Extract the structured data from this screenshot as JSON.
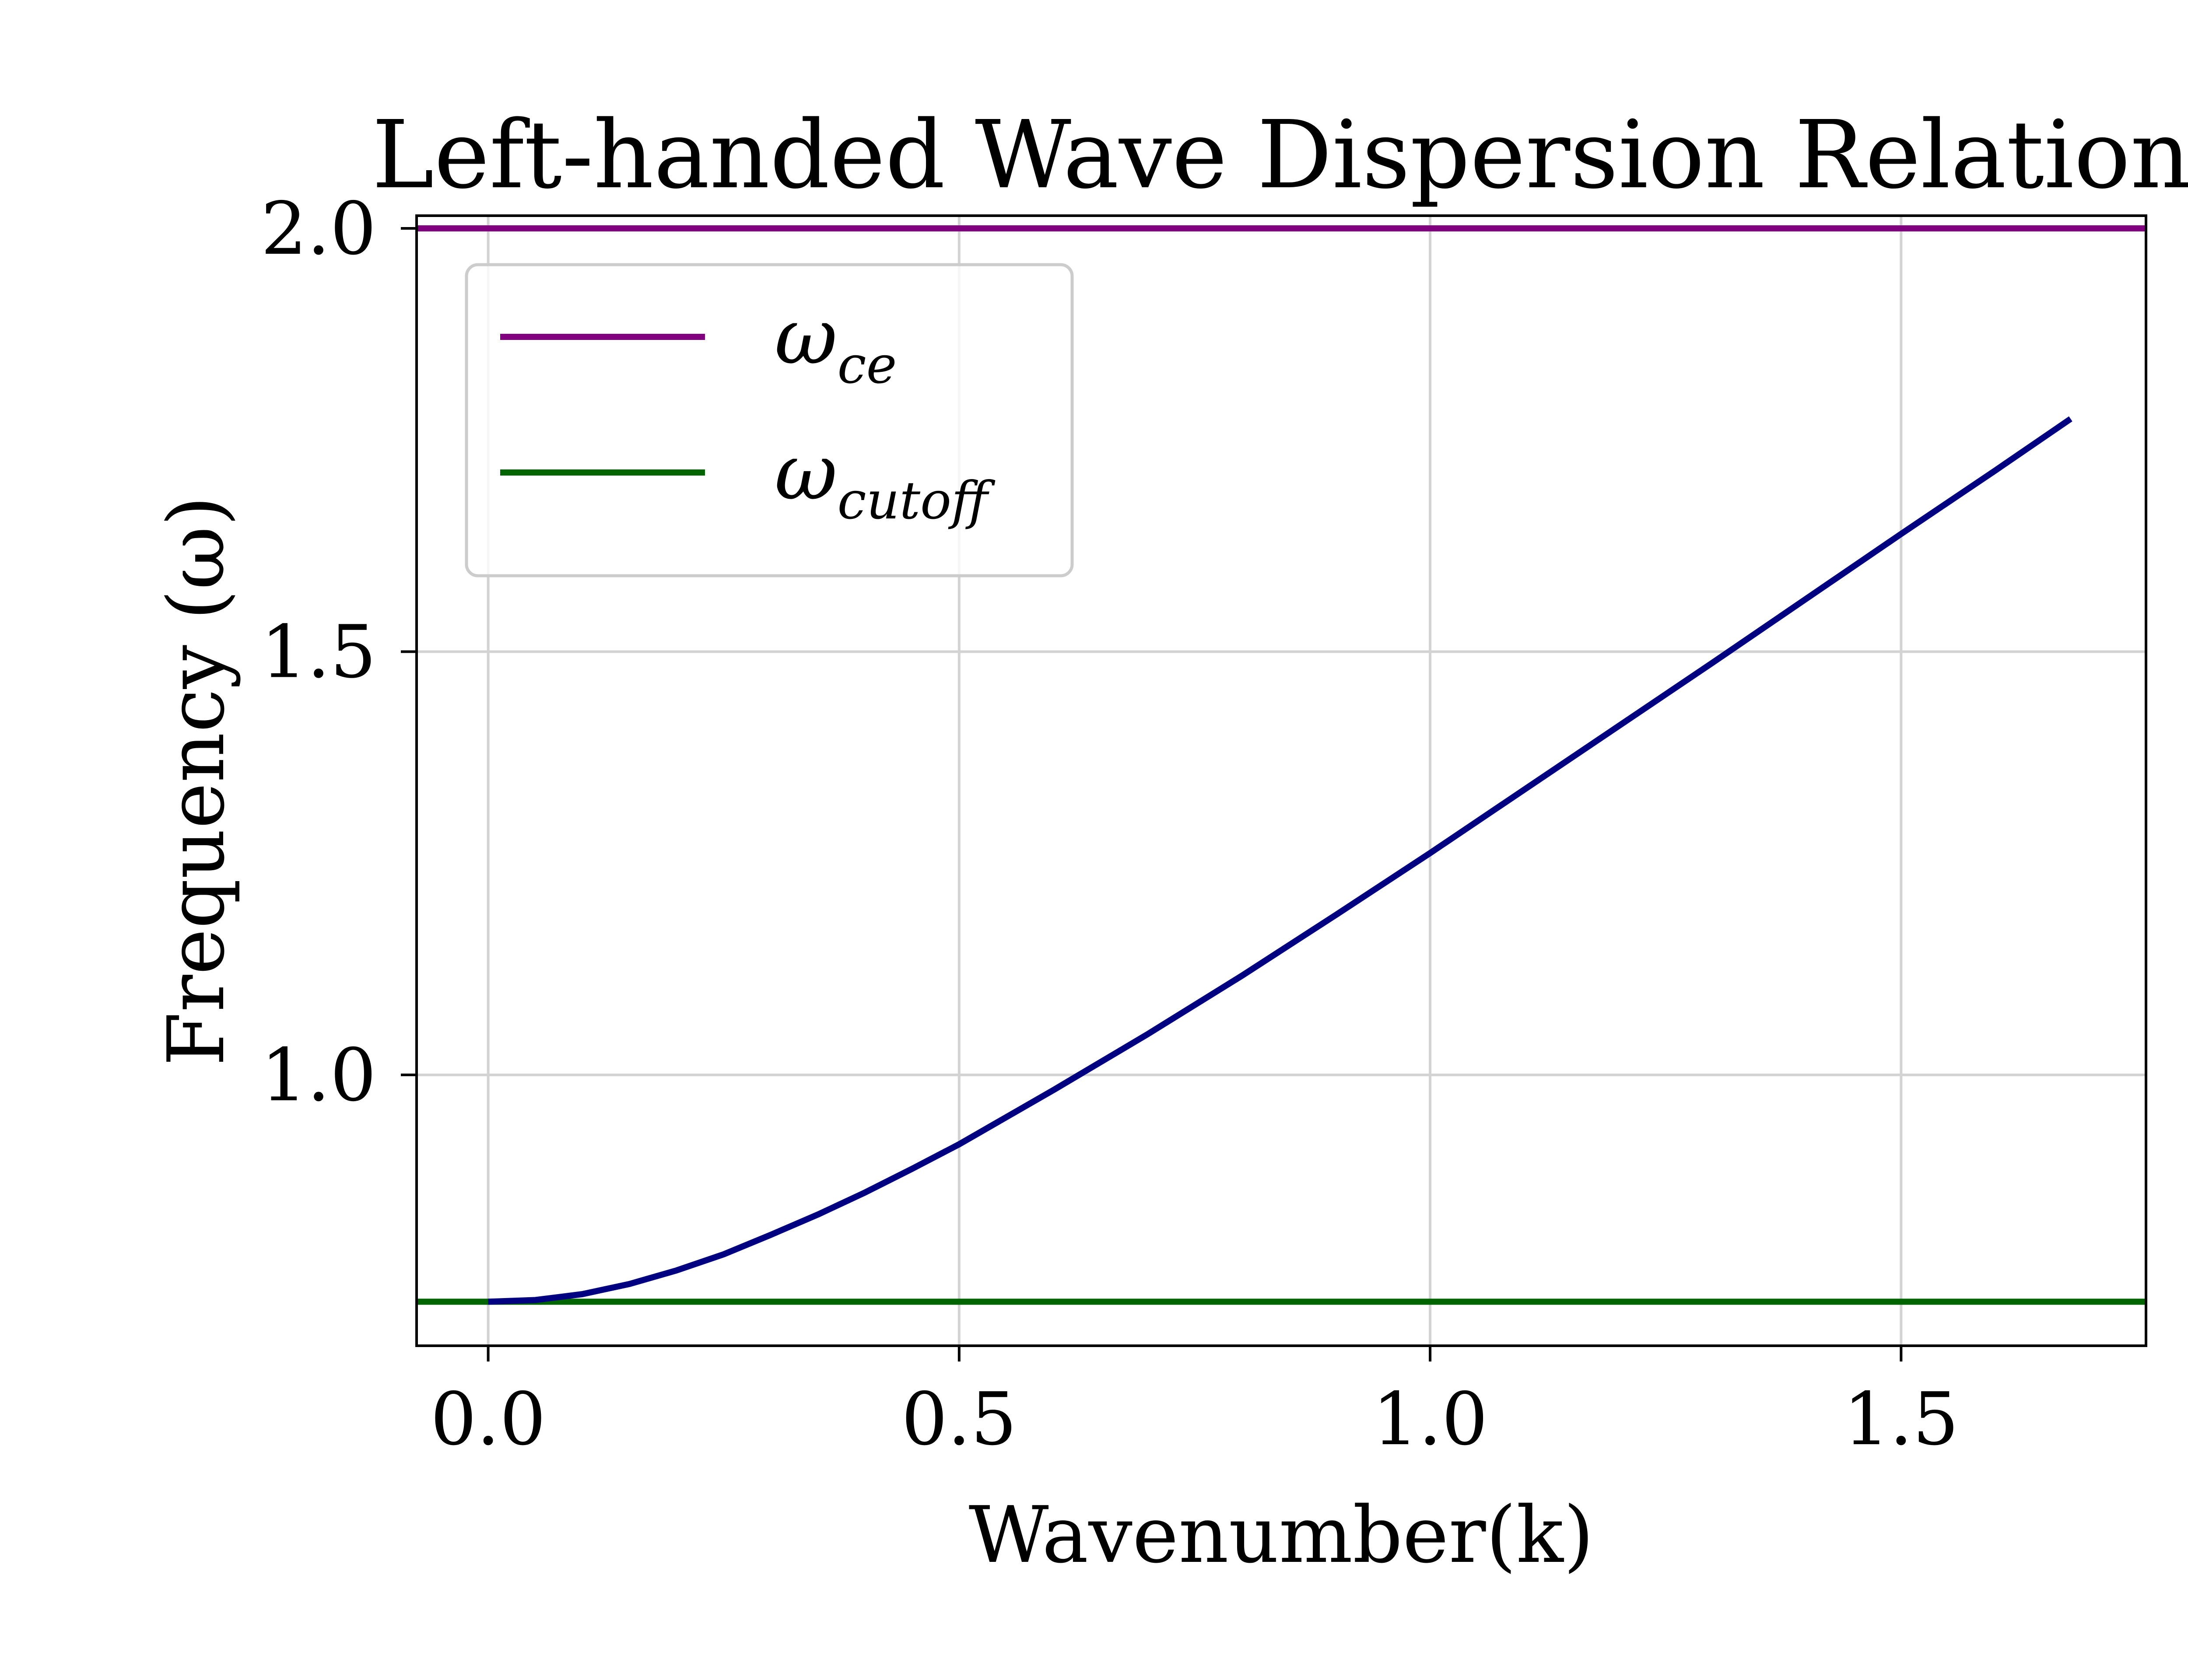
{
  "chart_data": {
    "type": "line",
    "title": "Left-handed Wave Dispersion Relation",
    "xlabel": "Wavenumber(k)",
    "ylabel": "Frequency (ω)",
    "xlim": [
      -0.076,
      1.76
    ],
    "ylim": [
      0.68,
      2.015
    ],
    "xticks": [
      0.0,
      0.5,
      1.0,
      1.5
    ],
    "yticks": [
      1.0,
      1.5,
      2.0
    ],
    "xtick_labels": [
      "0.0",
      "0.5",
      "1.0",
      "1.5"
    ],
    "ytick_labels": [
      "1.0",
      "1.5",
      "2.0"
    ],
    "grid": true,
    "legend_position": "top-left",
    "series": [
      {
        "name_base": "ω",
        "name_sub": "ce",
        "kind": "hline",
        "y": 2.0,
        "color": "#800080"
      },
      {
        "name_base": "ω",
        "name_sub": "cutoff",
        "kind": "hline",
        "y": 0.732,
        "color": "#006400"
      },
      {
        "kind": "curve",
        "color": "#000080",
        "x": [
          0.0,
          0.05,
          0.1,
          0.15,
          0.2,
          0.25,
          0.3,
          0.35,
          0.4,
          0.45,
          0.5,
          0.6,
          0.7,
          0.8,
          0.9,
          1.0,
          1.1,
          1.2,
          1.3,
          1.4,
          1.5,
          1.6,
          1.68
        ],
        "y": [
          0.732,
          0.734,
          0.741,
          0.753,
          0.769,
          0.788,
          0.811,
          0.835,
          0.861,
          0.889,
          0.918,
          0.982,
          1.048,
          1.117,
          1.189,
          1.262,
          1.337,
          1.412,
          1.487,
          1.563,
          1.639,
          1.714,
          1.775
        ]
      }
    ]
  }
}
